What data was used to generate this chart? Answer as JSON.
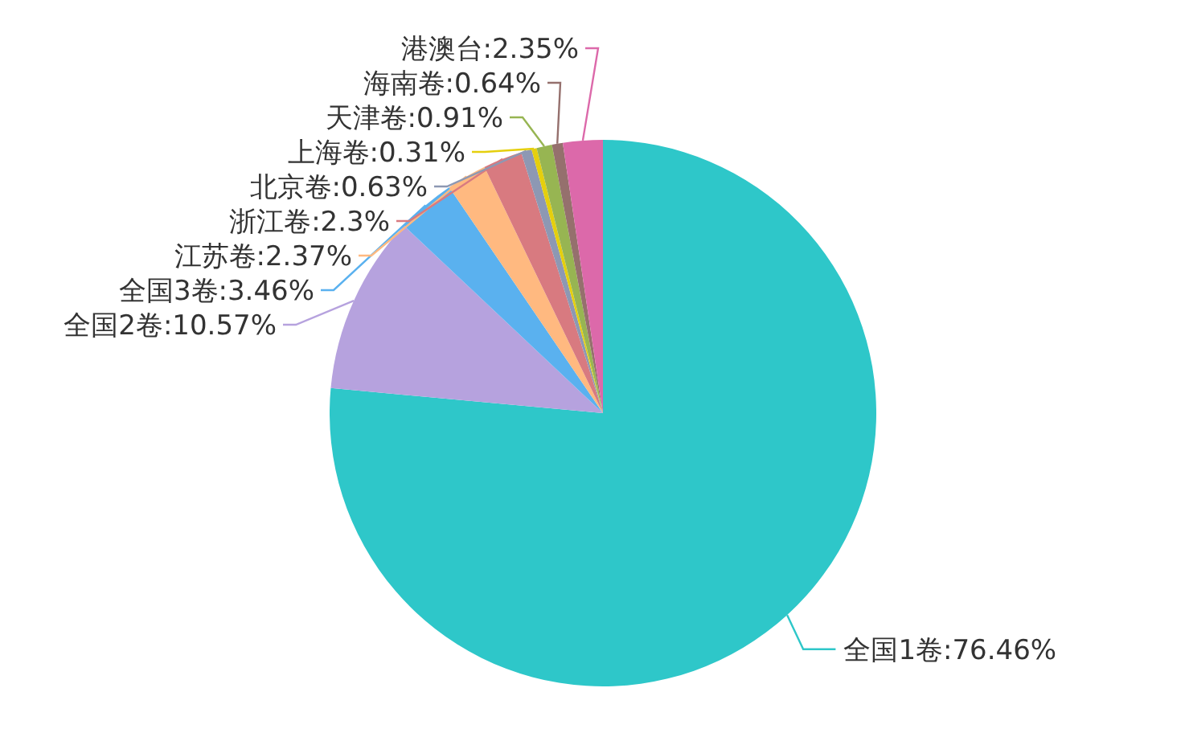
{
  "chart_data": {
    "type": "pie",
    "categories": [
      "全国1卷",
      "全国2卷",
      "全国3卷",
      "江苏卷",
      "浙江卷",
      "北京卷",
      "上海卷",
      "天津卷",
      "海南卷",
      "港澳台"
    ],
    "values": [
      76.46,
      10.57,
      3.46,
      2.37,
      2.3,
      0.63,
      0.31,
      0.91,
      0.64,
      2.35
    ],
    "value_labels": [
      ":76.46%",
      ":10.57%",
      ":3.46%",
      ":2.37%",
      ":2.3%",
      ":0.63%",
      ":0.31%",
      ":0.91%",
      ":0.64%",
      ":2.35%"
    ],
    "colors": [
      "#2ec7c9",
      "#b6a2de",
      "#5ab1ef",
      "#ffb980",
      "#d87a80",
      "#8d98b3",
      "#e5cf0d",
      "#97b552",
      "#95706d",
      "#dc69aa"
    ]
  }
}
